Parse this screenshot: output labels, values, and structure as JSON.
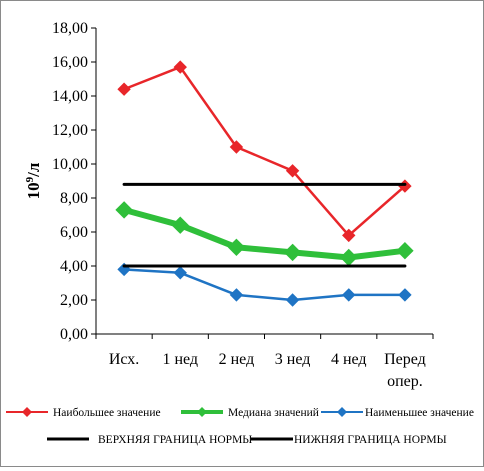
{
  "chart_data": {
    "type": "line",
    "ylabel_base": "10",
    "ylabel_exp": "9",
    "ylabel_unit": "/л",
    "ylim": [
      0,
      18
    ],
    "ytick_labels": [
      "0,00",
      "2,00",
      "4,00",
      "6,00",
      "8,00",
      "10,00",
      "12,00",
      "14,00",
      "16,00",
      "18,00"
    ],
    "categories": [
      {
        "line1": "Исх.",
        "line2": ""
      },
      {
        "line1": "1 нед",
        "line2": ""
      },
      {
        "line1": "2 нед",
        "line2": ""
      },
      {
        "line1": "3 нед",
        "line2": ""
      },
      {
        "line1": "4 нед",
        "line2": ""
      },
      {
        "line1": "Перед",
        "line2": "опер."
      }
    ],
    "grid": false,
    "legend_position": "bottom",
    "series": [
      {
        "name": "Наибольшее значение",
        "color": "#e8262a",
        "marker": "diamond",
        "values": [
          14.4,
          15.7,
          11.0,
          9.6,
          5.8,
          8.7
        ]
      },
      {
        "name": "Медиана значений",
        "color": "#2fbf3a",
        "marker": "diamond",
        "values": [
          7.3,
          6.4,
          5.1,
          4.8,
          4.5,
          4.9
        ]
      },
      {
        "name": "Наименьшее значение",
        "color": "#1f74c4",
        "marker": "diamond",
        "values": [
          3.8,
          3.6,
          2.3,
          2.0,
          2.3,
          2.3
        ]
      },
      {
        "name": "ВЕРХНЯЯ ГРАНИЦА НОРМЫ",
        "color": "#000000",
        "marker": "none",
        "values": [
          8.8,
          8.8,
          8.8,
          8.8,
          8.8,
          8.8
        ]
      },
      {
        "name": "НИЖНЯЯ ГРАНИЦА НОРМЫ",
        "color": "#000000",
        "marker": "none",
        "values": [
          4.0,
          4.0,
          4.0,
          4.0,
          4.0,
          4.0
        ]
      }
    ]
  }
}
